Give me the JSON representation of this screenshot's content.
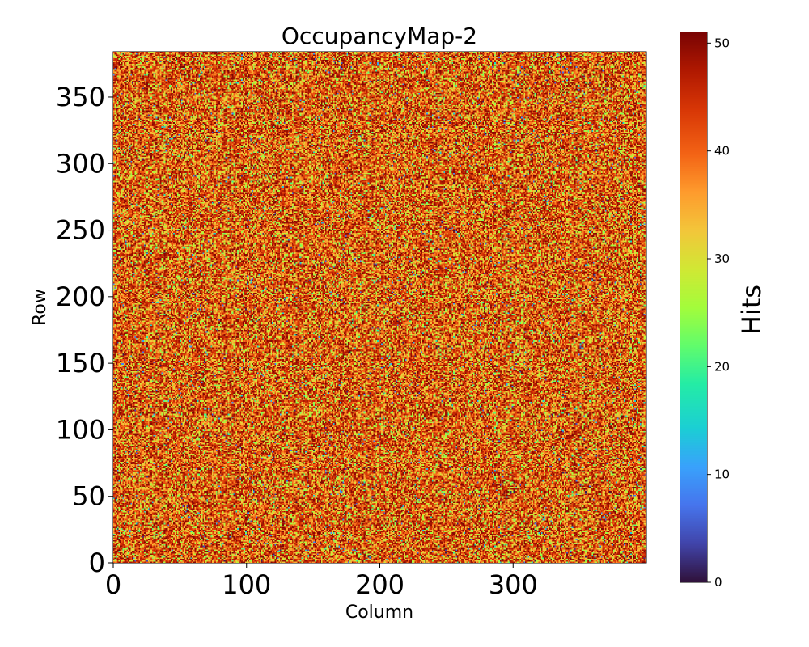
{
  "chart_data": {
    "type": "heatmap",
    "title": "OccupancyMap-2",
    "xlabel": "Column",
    "ylabel": "Row",
    "xlim": [
      0,
      400
    ],
    "ylim": [
      0,
      384
    ],
    "grid": false,
    "xticks": [
      0,
      100,
      200,
      300
    ],
    "yticks": [
      0,
      50,
      100,
      150,
      200,
      250,
      300,
      350
    ],
    "colorbar": {
      "label": "Hits",
      "range": [
        0,
        51
      ],
      "ticks": [
        0,
        10,
        20,
        30,
        40,
        50
      ],
      "colormap": "turbo"
    },
    "value_distribution": {
      "min": 0,
      "max": 51,
      "typical_low": 20,
      "typical_high": 51,
      "mean": 36
    }
  }
}
